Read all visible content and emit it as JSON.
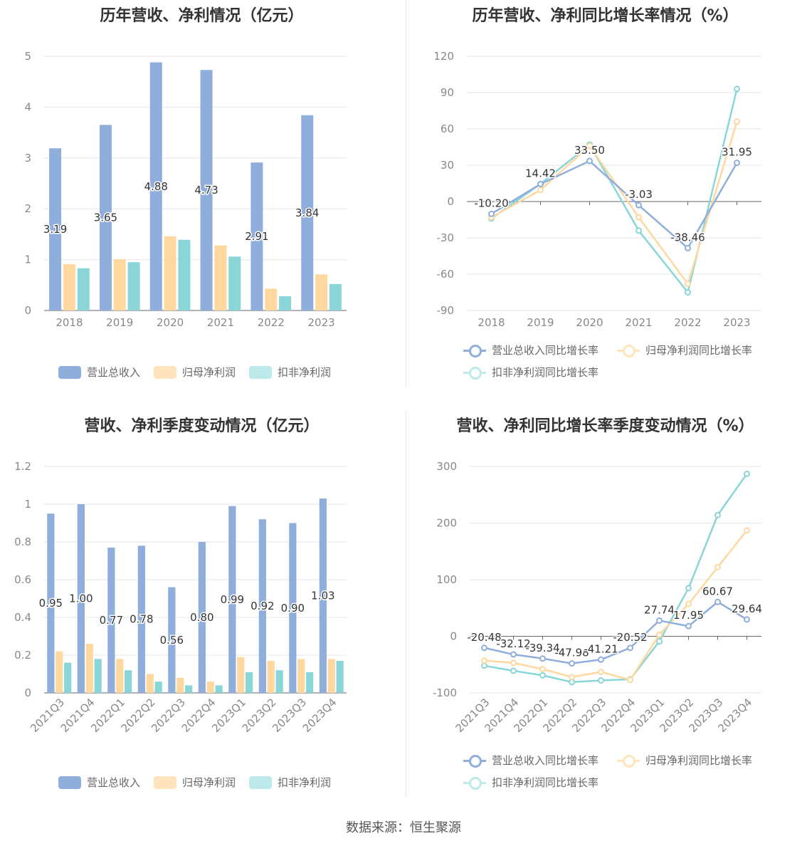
{
  "source": "数据来源：恒生聚源",
  "colors": {
    "revenue": "#8FAEDC",
    "net": "#FFD8A0",
    "deducted": "#8AD5D8"
  },
  "chart_data": [
    {
      "type": "bar",
      "title": "历年营收、净利情况（亿元）",
      "categories": [
        "2018",
        "2019",
        "2020",
        "2021",
        "2022",
        "2023"
      ],
      "ylim": [
        0,
        5
      ],
      "yticks": [
        0,
        1,
        2,
        3,
        4,
        5
      ],
      "legend_position": "bottom",
      "series": [
        {
          "name": "营业总收入",
          "values": [
            3.19,
            3.65,
            4.88,
            4.73,
            2.91,
            3.84
          ],
          "labels": [
            "3.19",
            "3.65",
            "4.88",
            "4.73",
            "2.91",
            "3.84"
          ]
        },
        {
          "name": "归母净利润",
          "values": [
            0.91,
            1.01,
            1.46,
            1.28,
            0.43,
            0.71
          ]
        },
        {
          "name": "扣非净利润",
          "values": [
            0.83,
            0.95,
            1.39,
            1.06,
            0.28,
            0.52
          ]
        }
      ]
    },
    {
      "type": "line",
      "title": "历年营收、净利同比增长率情况（%）",
      "categories": [
        "2018",
        "2019",
        "2020",
        "2021",
        "2022",
        "2023"
      ],
      "ylim": [
        -90,
        120
      ],
      "yticks": [
        -90,
        -60,
        -30,
        0,
        30,
        60,
        90,
        120
      ],
      "legend_position": "bottom",
      "series": [
        {
          "name": "营业总收入同比增长率",
          "values": [
            -10.2,
            14.42,
            33.5,
            -3.03,
            -38.46,
            31.95
          ],
          "labels": [
            "-10.20",
            "14.42",
            "33.50",
            "-3.03",
            "-38.46",
            "31.95"
          ]
        },
        {
          "name": "归母净利润同比增长率",
          "values": [
            -13,
            9.5,
            46,
            -13,
            -68,
            66
          ]
        },
        {
          "name": "扣非净利润同比增长率",
          "values": [
            -14,
            14.5,
            47,
            -24,
            -75,
            93
          ]
        }
      ]
    },
    {
      "type": "bar",
      "title": "营收、净利季度变动情况（亿元）",
      "categories": [
        "2021Q3",
        "2021Q4",
        "2022Q1",
        "2022Q2",
        "2022Q3",
        "2022Q4",
        "2023Q1",
        "2023Q2",
        "2023Q3",
        "2023Q4"
      ],
      "ylim": [
        0,
        1.2
      ],
      "yticks": [
        0,
        0.2,
        0.4,
        0.6,
        0.8,
        1,
        1.2
      ],
      "legend_position": "bottom",
      "series": [
        {
          "name": "营业总收入",
          "values": [
            0.95,
            1.0,
            0.77,
            0.78,
            0.56,
            0.8,
            0.99,
            0.92,
            0.9,
            1.03
          ],
          "labels": [
            "0.95",
            "1.00",
            "0.77",
            "0.78",
            "0.56",
            "0.80",
            "0.99",
            "0.92",
            "0.90",
            "1.03"
          ]
        },
        {
          "name": "归母净利润",
          "values": [
            0.22,
            0.26,
            0.18,
            0.1,
            0.08,
            0.06,
            0.19,
            0.17,
            0.18,
            0.18
          ]
        },
        {
          "name": "扣非净利润",
          "values": [
            0.16,
            0.18,
            0.12,
            0.06,
            0.04,
            0.04,
            0.11,
            0.12,
            0.11,
            0.17
          ]
        }
      ]
    },
    {
      "type": "line",
      "title": "营收、净利同比增长率季度变动情况（%）",
      "categories": [
        "2021Q3",
        "2021Q4",
        "2022Q1",
        "2022Q2",
        "2022Q3",
        "2022Q4",
        "2023Q1",
        "2023Q2",
        "2023Q3",
        "2023Q4"
      ],
      "ylim": [
        -100,
        300
      ],
      "yticks": [
        -100,
        0,
        100,
        200,
        300
      ],
      "legend_position": "bottom",
      "series": [
        {
          "name": "营业总收入同比增长率",
          "values": [
            -20.48,
            -32.12,
            -39.34,
            -47.98,
            -41.21,
            -20.52,
            27.74,
            17.95,
            60.67,
            29.64
          ],
          "labels": [
            "-20.48",
            "-32.12",
            "-39.34",
            "-47.98",
            "-41.21",
            "-20.52",
            "27.74",
            "17.95",
            "60.67",
            "29.64"
          ]
        },
        {
          "name": "归母净利润同比增长率",
          "values": [
            -43,
            -47,
            -58,
            -72,
            -63,
            -77,
            3,
            57,
            122,
            187
          ]
        },
        {
          "name": "扣非净利润同比增长率",
          "values": [
            -52,
            -61,
            -69,
            -81,
            -78,
            -76,
            -9,
            85,
            214,
            287
          ]
        }
      ]
    }
  ]
}
